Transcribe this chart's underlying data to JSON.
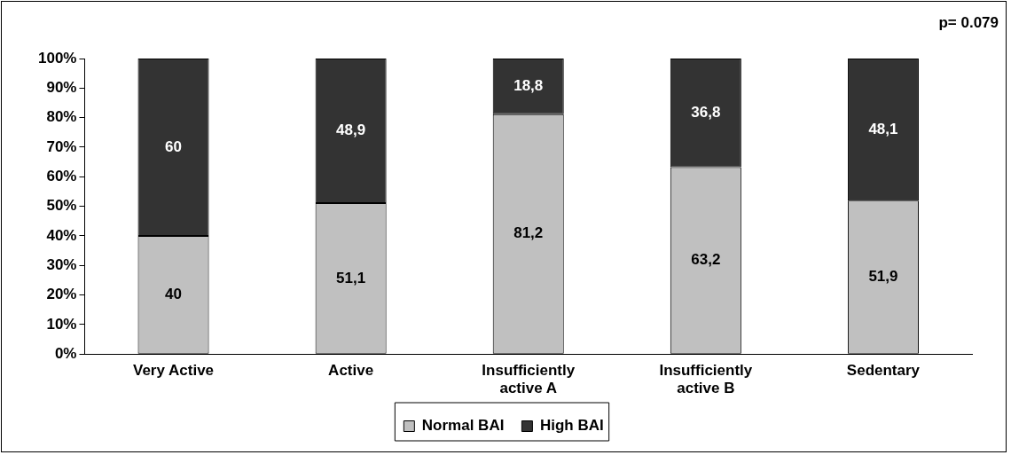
{
  "chart_data": {
    "type": "bar",
    "stacked": true,
    "categories": [
      "Very Active",
      "Active",
      "Insufficiently active A",
      "Insufficiently active B",
      "Sedentary"
    ],
    "series": [
      {
        "name": "Normal BAI",
        "color": "#c0c0c0",
        "values": [
          40,
          51.1,
          81.2,
          63.2,
          51.9
        ],
        "value_labels": [
          "40",
          "51,1",
          "81,2",
          "63,2",
          "51,9"
        ]
      },
      {
        "name": "High BAI",
        "color": "#333333",
        "values": [
          60,
          48.9,
          18.8,
          36.8,
          48.1
        ],
        "value_labels": [
          "60",
          "48,9",
          "18,8",
          "36,8",
          "48,1"
        ]
      }
    ],
    "ylim": [
      0,
      100
    ],
    "yticks": [
      {
        "value": 0,
        "label": "0%"
      },
      {
        "value": 10,
        "label": "10%"
      },
      {
        "value": 20,
        "label": "20%"
      },
      {
        "value": 30,
        "label": "30%"
      },
      {
        "value": 40,
        "label": "40%"
      },
      {
        "value": 50,
        "label": "50%"
      },
      {
        "value": 60,
        "label": "60%"
      },
      {
        "value": 70,
        "label": "70%"
      },
      {
        "value": 80,
        "label": "80%"
      },
      {
        "value": 90,
        "label": "90%"
      },
      {
        "value": 100,
        "label": "100%"
      }
    ],
    "grid": false,
    "legend": "bottom",
    "annotations": [
      "p= 0.079"
    ]
  }
}
